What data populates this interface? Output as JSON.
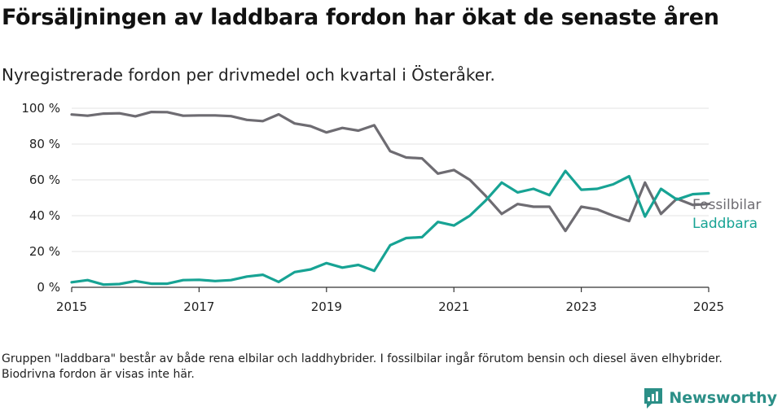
{
  "title": "Försäljningen av laddbara fordon har ökat de senaste åren",
  "subtitle": "Nyregistrerade fordon per drivmedel och kvartal i Österåker.",
  "footnote": "Gruppen \"laddbara\" består av både rena elbilar och laddhybrider. I fossilbilar ingår förutom bensin och diesel även elhybrider. Biodrivna fordon är visas inte här.",
  "brand": {
    "name": "Newsworthy",
    "icon": "newsworthy-logo-icon",
    "color": "#2b8f87"
  },
  "chart_data": {
    "type": "line",
    "xlim": [
      2015,
      2025
    ],
    "ylim": [
      0,
      100
    ],
    "x_ticks": [
      "2015",
      "2017",
      "2019",
      "2021",
      "2023",
      "2025"
    ],
    "y_ticks": [
      "0 %",
      "20 %",
      "40 %",
      "60 %",
      "80 %",
      "100 %"
    ],
    "grid": true,
    "legend": "right-end labels",
    "x": [
      2015.0,
      2015.25,
      2015.5,
      2015.75,
      2016.0,
      2016.25,
      2016.5,
      2016.75,
      2017.0,
      2017.25,
      2017.5,
      2017.75,
      2018.0,
      2018.25,
      2018.5,
      2018.75,
      2019.0,
      2019.25,
      2019.5,
      2019.75,
      2020.0,
      2020.25,
      2020.5,
      2020.75,
      2021.0,
      2021.25,
      2021.5,
      2021.75,
      2022.0,
      2022.25,
      2022.5,
      2022.75,
      2023.0,
      2023.25,
      2023.5,
      2023.75,
      2024.0,
      2024.25,
      2024.5,
      2024.75,
      2025.0
    ],
    "series": [
      {
        "name": "Fossilbilar",
        "color": "#6e6c72",
        "values": [
          96.5,
          95.8,
          97.0,
          97.2,
          95.5,
          97.9,
          97.8,
          95.8,
          96.0,
          96.0,
          95.6,
          93.5,
          92.8,
          96.6,
          91.5,
          90.0,
          86.5,
          89.0,
          87.5,
          90.5,
          76.0,
          72.5,
          72.0,
          63.5,
          65.5,
          60.0,
          51.0,
          41.0,
          46.5,
          45.0,
          45.0,
          31.5,
          45.0,
          43.5,
          40.0,
          37.0,
          58.5,
          41.0,
          49.5,
          46.0,
          46.5
        ]
      },
      {
        "name": "Laddbara",
        "color": "#17a394",
        "values": [
          2.8,
          4.0,
          1.5,
          1.8,
          3.5,
          2.0,
          2.0,
          4.0,
          4.2,
          3.5,
          4.0,
          6.0,
          7.0,
          3.0,
          8.5,
          10.0,
          13.5,
          11.0,
          12.5,
          9.2,
          23.5,
          27.5,
          28.0,
          36.5,
          34.5,
          40.0,
          48.5,
          58.5,
          53.0,
          55.0,
          51.5,
          65.0,
          54.5,
          55.0,
          57.5,
          62.0,
          39.5,
          55.0,
          49.0,
          52.0,
          52.5
        ]
      }
    ]
  }
}
